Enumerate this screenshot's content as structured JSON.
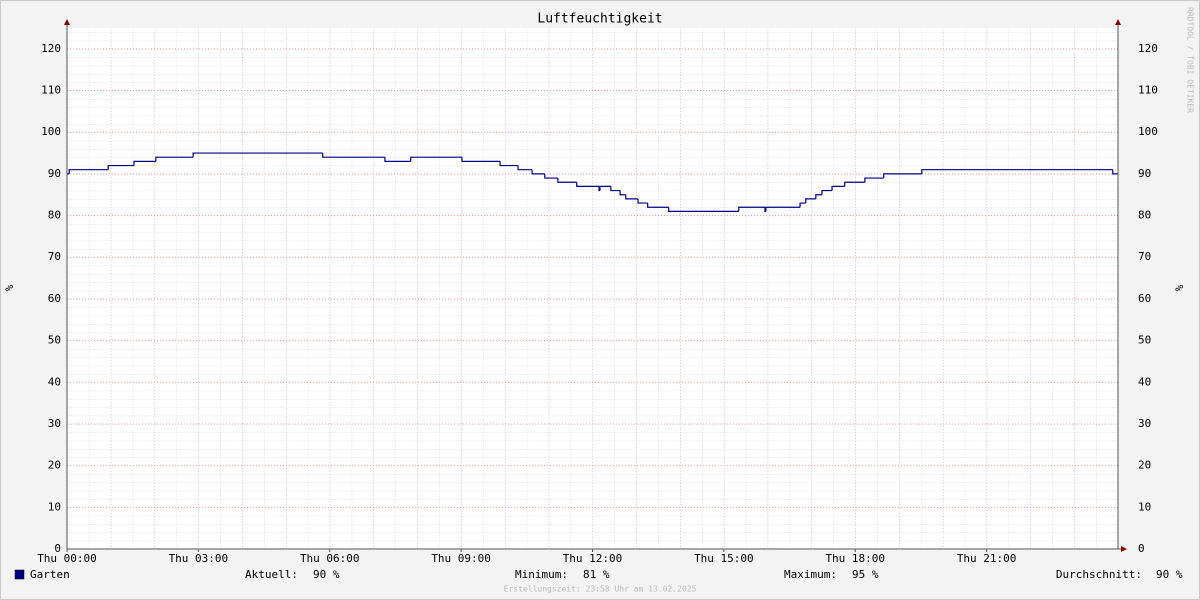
{
  "chart_data": {
    "type": "line",
    "title": "Luftfeuchtigkeit",
    "y_label": "%",
    "x": [
      0,
      0.05,
      0.94,
      1.53,
      2.03,
      2.88,
      5.84,
      7.26,
      7.85,
      9.02,
      9.89,
      10.3,
      10.62,
      10.91,
      11.21,
      11.64,
      12.15,
      12.17,
      12.42,
      12.63,
      12.76,
      13.04,
      13.26,
      13.74,
      15.34,
      15.94,
      15.96,
      16.74,
      16.87,
      17.1,
      17.24,
      17.47,
      17.76,
      18.22,
      18.65,
      19.52,
      23.88,
      24
    ],
    "series": [
      {
        "name": "Garten",
        "color": "#000080",
        "values": [
          90,
          91,
          92,
          93,
          94,
          95,
          94,
          93,
          94,
          93,
          92,
          91,
          90,
          89,
          88,
          87,
          86,
          87,
          86,
          85,
          84,
          83,
          82,
          81,
          82,
          81,
          82,
          83,
          84,
          85,
          86,
          87,
          88,
          89,
          90,
          91,
          90,
          90
        ]
      }
    ],
    "xlim": [
      0,
      24
    ],
    "ylim": [
      0,
      125
    ],
    "xticks": [
      {
        "value": 0,
        "label": "Thu 00:00"
      },
      {
        "value": 3,
        "label": "Thu 03:00"
      },
      {
        "value": 6,
        "label": "Thu 06:00"
      },
      {
        "value": 9,
        "label": "Thu 09:00"
      },
      {
        "value": 12,
        "label": "Thu 12:00"
      },
      {
        "value": 15,
        "label": "Thu 15:00"
      },
      {
        "value": 18,
        "label": "Thu 18:00"
      },
      {
        "value": 21,
        "label": "Thu 21:00"
      }
    ],
    "yticks": [
      0,
      10,
      20,
      30,
      40,
      50,
      60,
      70,
      80,
      90,
      100,
      110,
      120
    ],
    "grid": true,
    "legend_stats": [
      {
        "label": "Aktuell:",
        "value": "90 %"
      },
      {
        "label": "Minimum:",
        "value": "81 %"
      },
      {
        "label": "Maximum:",
        "value": "95 %"
      },
      {
        "label": "Durchschnitt:",
        "value": "90 %"
      }
    ],
    "footer": "Erstellungszeit: 23:58 Uhr am 13.02.2025",
    "watermark": "RRDTOOL / TOBI OETIKER"
  }
}
